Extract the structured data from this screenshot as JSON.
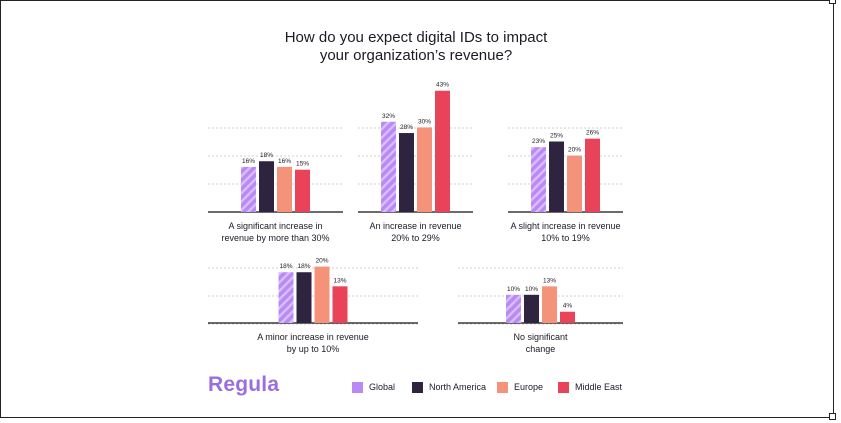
{
  "title_line1": "How do you expect digital IDs to impact",
  "title_line2": "your organization’s revenue?",
  "logo_text": "Regula",
  "colors": {
    "Global": "#b98af3",
    "Global_stripe": "#d8bcfb",
    "North America": "#2f2440",
    "Europe": "#f5937a",
    "Middle East": "#e9435a",
    "grid": "#cfcfcf",
    "axis": "#3a3a3a"
  },
  "chart_data": {
    "type": "bar",
    "series_names": [
      "Global",
      "North America",
      "Europe",
      "Middle East"
    ],
    "groups": [
      {
        "label_line1": "A significant increase in",
        "label_line2": "revenue by more than 30%",
        "values": [
          16,
          18,
          16,
          15
        ],
        "labels": [
          "16%",
          "18%",
          "16%",
          "15%"
        ]
      },
      {
        "label_line1": "An increase in revenue",
        "label_line2": "20% to 29%",
        "values": [
          32,
          28,
          30,
          43
        ],
        "labels": [
          "32%",
          "28%",
          "30%",
          "43%"
        ]
      },
      {
        "label_line1": "A slight increase in revenue",
        "label_line2": "10% to 19%",
        "values": [
          23,
          25,
          20,
          26
        ],
        "labels": [
          "23%",
          "25%",
          "20%",
          "26%"
        ]
      },
      {
        "label_line1": "A minor increase in revenue",
        "label_line2": "by up to 10%",
        "values": [
          18,
          18,
          20,
          13
        ],
        "labels": [
          "18%",
          "18%",
          "20%",
          "13%"
        ]
      },
      {
        "label_line1": "No significant",
        "label_line2": "change",
        "values": [
          10,
          10,
          13,
          4
        ],
        "labels": [
          "10%",
          "10%",
          "13%",
          "4%"
        ]
      }
    ]
  },
  "legend": [
    {
      "label": "Global"
    },
    {
      "label": "North America"
    },
    {
      "label": "Europe"
    },
    {
      "label": "Middle East"
    }
  ]
}
